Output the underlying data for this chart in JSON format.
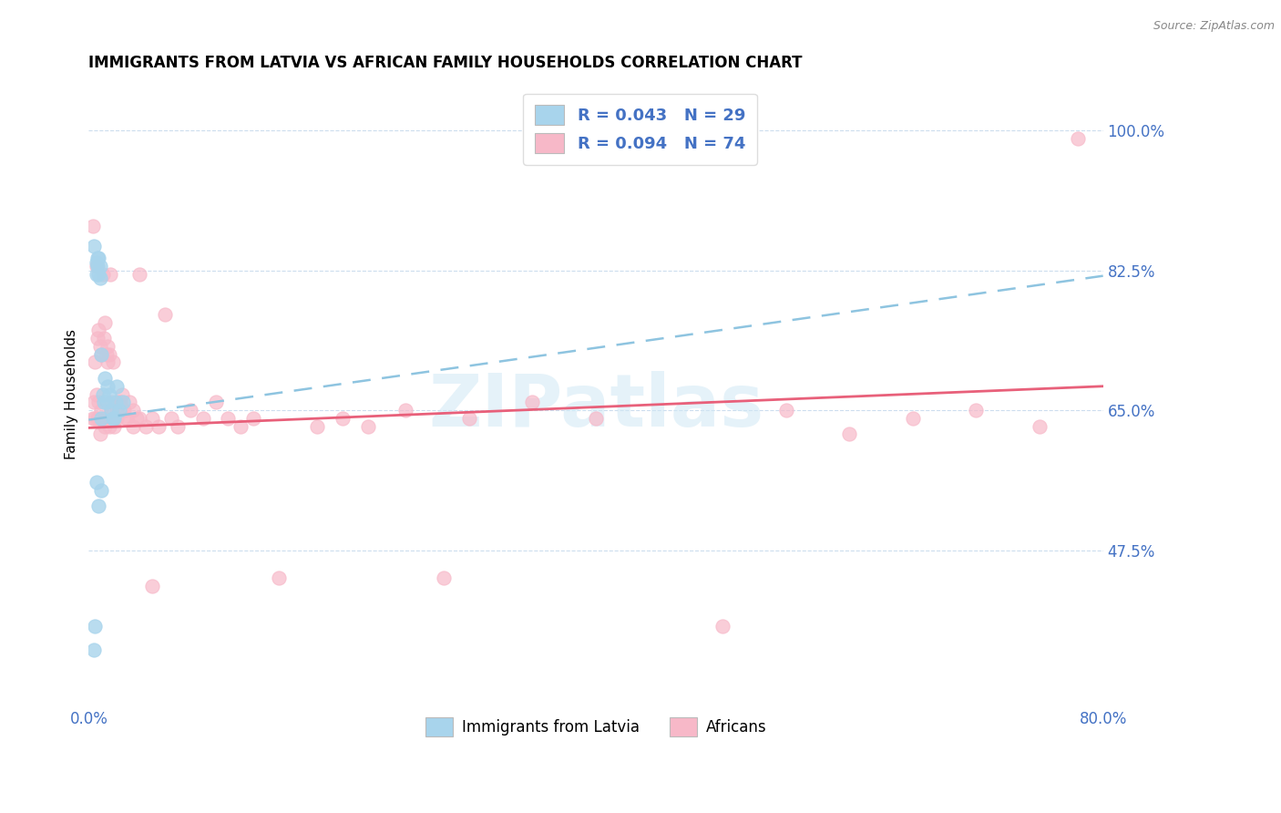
{
  "title": "IMMIGRANTS FROM LATVIA VS AFRICAN FAMILY HOUSEHOLDS CORRELATION CHART",
  "source": "Source: ZipAtlas.com",
  "ylabel": "Family Households",
  "ytick_values": [
    0.475,
    0.65,
    0.825,
    1.0
  ],
  "ytick_labels": [
    "47.5%",
    "65.0%",
    "82.5%",
    "100.0%"
  ],
  "blue_color": "#A8D4EC",
  "pink_color": "#F7B8C8",
  "trendline_blue_color": "#8EC4E0",
  "trendline_pink_color": "#E8607A",
  "axis_color": "#4472C4",
  "xmin": 0.0,
  "xmax": 0.8,
  "ymin": 0.28,
  "ymax": 1.06,
  "blue_intercept": 0.638,
  "blue_slope": 0.225,
  "pink_intercept": 0.628,
  "pink_slope": 0.065,
  "blue_scatter_x": [
    0.004,
    0.006,
    0.006,
    0.007,
    0.007,
    0.008,
    0.008,
    0.009,
    0.009,
    0.01,
    0.01,
    0.011,
    0.012,
    0.013,
    0.014,
    0.015,
    0.016,
    0.018,
    0.019,
    0.02,
    0.021,
    0.022,
    0.024,
    0.027,
    0.01,
    0.008,
    0.006,
    0.005,
    0.004
  ],
  "blue_scatter_y": [
    0.855,
    0.835,
    0.82,
    0.84,
    0.83,
    0.82,
    0.84,
    0.815,
    0.83,
    0.64,
    0.72,
    0.67,
    0.66,
    0.69,
    0.66,
    0.68,
    0.67,
    0.65,
    0.64,
    0.64,
    0.66,
    0.68,
    0.65,
    0.66,
    0.55,
    0.53,
    0.56,
    0.38,
    0.35
  ],
  "pink_scatter_x": [
    0.003,
    0.005,
    0.006,
    0.007,
    0.008,
    0.009,
    0.01,
    0.011,
    0.012,
    0.013,
    0.014,
    0.015,
    0.016,
    0.017,
    0.018,
    0.019,
    0.02,
    0.022,
    0.024,
    0.026,
    0.028,
    0.03,
    0.032,
    0.035,
    0.038,
    0.04,
    0.045,
    0.05,
    0.055,
    0.06,
    0.065,
    0.07,
    0.08,
    0.09,
    0.1,
    0.11,
    0.12,
    0.13,
    0.15,
    0.18,
    0.2,
    0.22,
    0.25,
    0.28,
    0.3,
    0.35,
    0.4,
    0.5,
    0.55,
    0.6,
    0.65,
    0.7,
    0.75,
    0.003,
    0.004,
    0.005,
    0.006,
    0.007,
    0.008,
    0.009,
    0.01,
    0.012,
    0.013,
    0.015,
    0.016,
    0.018,
    0.02,
    0.022,
    0.025,
    0.03,
    0.035,
    0.04,
    0.05,
    0.78
  ],
  "pink_scatter_y": [
    0.88,
    0.71,
    0.83,
    0.74,
    0.75,
    0.73,
    0.72,
    0.82,
    0.74,
    0.76,
    0.72,
    0.73,
    0.72,
    0.82,
    0.66,
    0.71,
    0.64,
    0.65,
    0.66,
    0.67,
    0.65,
    0.64,
    0.66,
    0.65,
    0.64,
    0.82,
    0.63,
    0.64,
    0.63,
    0.77,
    0.64,
    0.63,
    0.65,
    0.64,
    0.66,
    0.64,
    0.63,
    0.64,
    0.44,
    0.63,
    0.64,
    0.63,
    0.65,
    0.44,
    0.64,
    0.66,
    0.64,
    0.38,
    0.65,
    0.62,
    0.64,
    0.65,
    0.63,
    0.64,
    0.66,
    0.64,
    0.67,
    0.64,
    0.66,
    0.62,
    0.65,
    0.64,
    0.63,
    0.71,
    0.63,
    0.65,
    0.63,
    0.64,
    0.66,
    0.64,
    0.63,
    0.64,
    0.43,
    0.99
  ]
}
